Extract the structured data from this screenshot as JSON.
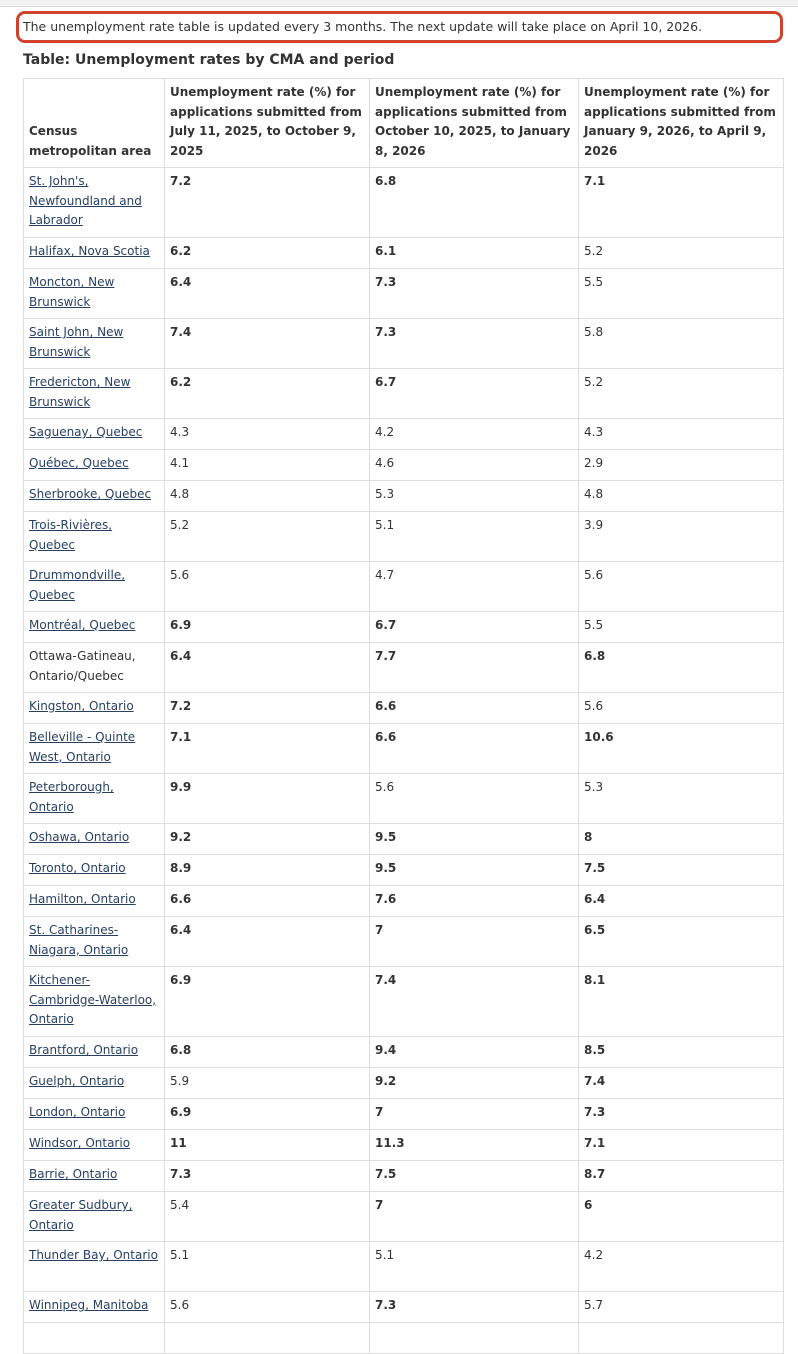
{
  "notice": "The unemployment rate table is updated every 3 months. The next update will take place on April 10, 2026.",
  "table": {
    "caption": "Table: Unemployment rates by CMA and period",
    "headers": [
      "Census metropolitan area",
      "Unemployment rate (%) for applications submitted from July 11, 2025, to October 9, 2025",
      "Unemployment rate (%) for applications submitted from October 10, 2025, to January 8, 2026",
      "Unemployment rate (%) for applications submitted from January 9, 2026, to April 9, 2026"
    ],
    "rows": [
      {
        "cma": "St. John's, Newfoundland and Labrador",
        "link": true,
        "h": 70,
        "v": [
          "7.2",
          "6.8",
          "7.1"
        ],
        "b": [
          true,
          true,
          true
        ]
      },
      {
        "cma": "Halifax, Nova Scotia",
        "link": true,
        "h": 31,
        "v": [
          "6.2",
          "6.1",
          "5.2"
        ],
        "b": [
          true,
          true,
          false
        ]
      },
      {
        "cma": "Moncton, New Brunswick",
        "link": true,
        "h": 50,
        "v": [
          "6.4",
          "7.3",
          "5.5"
        ],
        "b": [
          true,
          true,
          false
        ]
      },
      {
        "cma": "Saint John, New Brunswick",
        "link": true,
        "h": 50,
        "v": [
          "7.4",
          "7.3",
          "5.8"
        ],
        "b": [
          true,
          true,
          false
        ]
      },
      {
        "cma": "Fredericton, New Brunswick",
        "link": true,
        "h": 50,
        "v": [
          "6.2",
          "6.7",
          "5.2"
        ],
        "b": [
          true,
          true,
          false
        ]
      },
      {
        "cma": "Saguenay, Quebec",
        "link": true,
        "h": 31,
        "v": [
          "4.3",
          "4.2",
          "4.3"
        ],
        "b": [
          false,
          false,
          false
        ]
      },
      {
        "cma": "Québec, Quebec",
        "link": true,
        "h": 31,
        "v": [
          "4.1",
          "4.6",
          "2.9"
        ],
        "b": [
          false,
          false,
          false
        ]
      },
      {
        "cma": "Sherbrooke, Quebec",
        "link": true,
        "h": 31,
        "v": [
          "4.8",
          "5.3",
          "4.8"
        ],
        "b": [
          false,
          false,
          false
        ]
      },
      {
        "cma": "Trois-Rivières, Quebec",
        "link": true,
        "h": 50,
        "v": [
          "5.2",
          "5.1",
          "3.9"
        ],
        "b": [
          false,
          false,
          false
        ]
      },
      {
        "cma": "Drummondville, Quebec",
        "link": true,
        "h": 50,
        "v": [
          "5.6",
          "4.7",
          "5.6"
        ],
        "b": [
          false,
          false,
          false
        ]
      },
      {
        "cma": "Montréal, Quebec",
        "link": true,
        "h": 31,
        "v": [
          "6.9",
          "6.7",
          "5.5"
        ],
        "b": [
          true,
          true,
          false
        ]
      },
      {
        "cma": "Ottawa-Gatineau, Ontario/Quebec",
        "link": false,
        "h": 50,
        "v": [
          "6.4",
          "7.7",
          "6.8"
        ],
        "b": [
          true,
          true,
          true
        ]
      },
      {
        "cma": "Kingston, Ontario",
        "link": true,
        "h": 31,
        "v": [
          "7.2",
          "6.6",
          "5.6"
        ],
        "b": [
          true,
          true,
          false
        ]
      },
      {
        "cma": "Belleville - Quinte West, Ontario",
        "link": true,
        "h": 50,
        "v": [
          "7.1",
          "6.6",
          "10.6"
        ],
        "b": [
          true,
          true,
          true
        ]
      },
      {
        "cma": "Peterborough, Ontario",
        "link": true,
        "h": 50,
        "v": [
          "9.9",
          "5.6",
          "5.3"
        ],
        "b": [
          true,
          false,
          false
        ]
      },
      {
        "cma": "Oshawa, Ontario",
        "link": true,
        "h": 31,
        "v": [
          "9.2",
          "9.5",
          "8"
        ],
        "b": [
          true,
          true,
          true
        ]
      },
      {
        "cma": "Toronto, Ontario",
        "link": true,
        "h": 31,
        "v": [
          "8.9",
          "9.5",
          "7.5"
        ],
        "b": [
          true,
          true,
          true
        ]
      },
      {
        "cma": "Hamilton, Ontario",
        "link": true,
        "h": 31,
        "v": [
          "6.6",
          "7.6",
          "6.4"
        ],
        "b": [
          true,
          true,
          true
        ]
      },
      {
        "cma": "St. Catharines-Niagara, Ontario",
        "link": true,
        "h": 50,
        "v": [
          "6.4",
          "7",
          "6.5"
        ],
        "b": [
          true,
          true,
          true
        ]
      },
      {
        "cma": "Kitchener-Cambridge-Waterloo, Ontario",
        "link": true,
        "h": 70,
        "v": [
          "6.9",
          "7.4",
          "8.1"
        ],
        "b": [
          true,
          true,
          true
        ]
      },
      {
        "cma": "Brantford, Ontario",
        "link": true,
        "h": 31,
        "v": [
          "6.8",
          "9.4",
          "8.5"
        ],
        "b": [
          true,
          true,
          true
        ]
      },
      {
        "cma": "Guelph, Ontario",
        "link": true,
        "h": 31,
        "v": [
          "5.9",
          "9.2",
          "7.4"
        ],
        "b": [
          false,
          true,
          true
        ]
      },
      {
        "cma": "London, Ontario",
        "link": true,
        "h": 31,
        "v": [
          "6.9",
          "7",
          "7.3"
        ],
        "b": [
          true,
          true,
          true
        ]
      },
      {
        "cma": "Windsor, Ontario",
        "link": true,
        "h": 31,
        "v": [
          "11",
          "11.3",
          "7.1"
        ],
        "b": [
          true,
          true,
          true
        ]
      },
      {
        "cma": "Barrie, Ontario",
        "link": true,
        "h": 31,
        "v": [
          "7.3",
          "7.5",
          "8.7"
        ],
        "b": [
          true,
          true,
          true
        ]
      },
      {
        "cma": "Greater Sudbury, Ontario",
        "link": true,
        "h": 50,
        "v": [
          "5.4",
          "7",
          "6"
        ],
        "b": [
          false,
          true,
          true
        ]
      },
      {
        "cma": "Thunder Bay, Ontario",
        "link": true,
        "h": 50,
        "v": [
          "5.1",
          "5.1",
          "4.2"
        ],
        "b": [
          false,
          false,
          false
        ]
      },
      {
        "cma": "Winnipeg, Manitoba",
        "link": true,
        "h": 31,
        "v": [
          "5.6",
          "7.3",
          "5.7"
        ],
        "b": [
          false,
          true,
          false
        ]
      },
      {
        "cma": "",
        "link": false,
        "h": 31,
        "v": [
          "",
          "",
          ""
        ],
        "b": [
          false,
          false,
          false
        ]
      }
    ]
  }
}
